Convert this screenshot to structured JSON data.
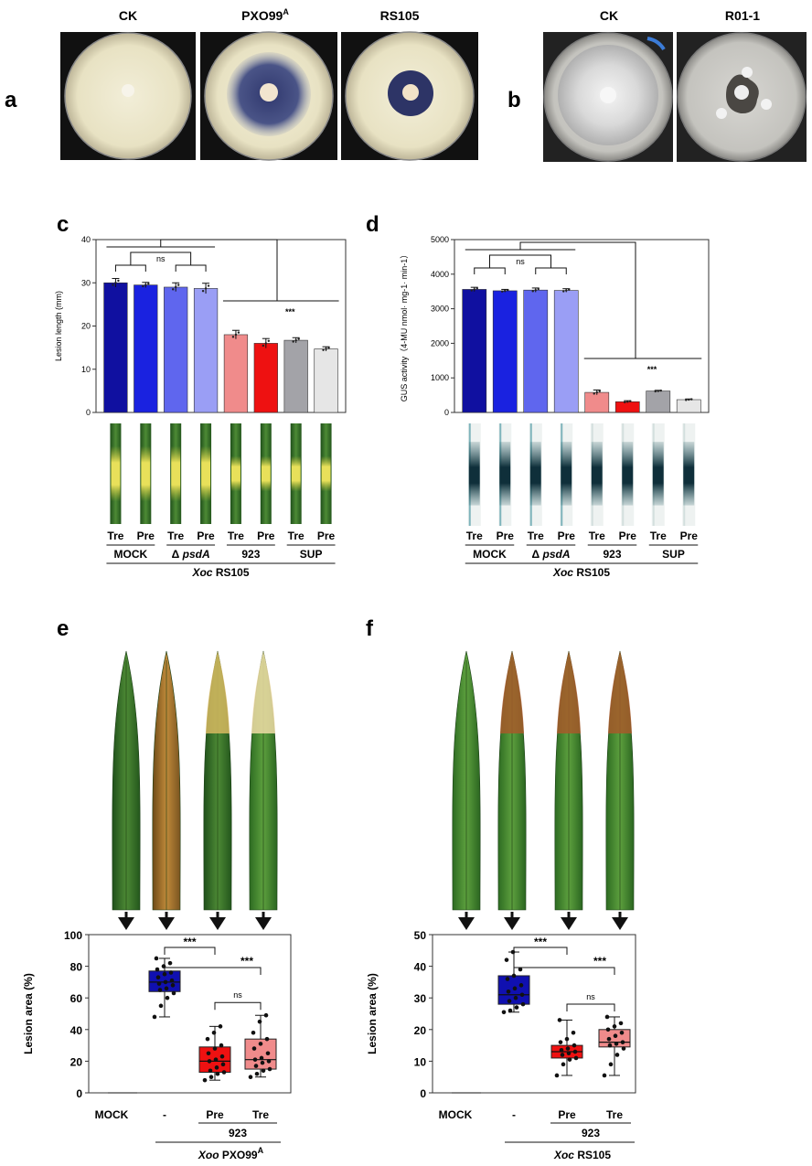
{
  "panel_a": {
    "letter": "a",
    "plates": [
      {
        "label": "CK",
        "halo": "none"
      },
      {
        "label": "PXO99",
        "sup": "A",
        "halo": "large"
      },
      {
        "label": "RS105",
        "halo": "small"
      }
    ]
  },
  "panel_b": {
    "letter": "b",
    "plates": [
      {
        "label": "CK"
      },
      {
        "label": "R01-1"
      }
    ]
  },
  "panel_c": {
    "letter": "c",
    "leaf_style": "yellow lesion",
    "treatments": [
      "Tre",
      "Pre",
      "Tre",
      "Pre",
      "Tre",
      "Pre",
      "Tre",
      "Pre"
    ],
    "groups": [
      "MOCK",
      "Δ",
      "psdA",
      "923",
      "SUP"
    ],
    "strain_prefix": "Xoc",
    "strain": "RS105",
    "sig": [
      "ns",
      "***"
    ]
  },
  "panel_d": {
    "letter": "d",
    "leaf_style": "GUS stain",
    "treatments": [
      "Tre",
      "Pre",
      "Tre",
      "Pre",
      "Tre",
      "Pre",
      "Tre",
      "Pre"
    ],
    "groups": [
      "MOCK",
      "Δ",
      "psdA",
      "923",
      "SUP"
    ],
    "strain_prefix": "Xoc",
    "strain": "RS105",
    "sig": [
      "ns",
      "***"
    ]
  },
  "panel_e": {
    "letter": "e",
    "categories": [
      "MOCK",
      "-",
      "Pre",
      "Tre"
    ],
    "sublabel": "923",
    "strain_prefix": "Xoo",
    "strain": "PXO99",
    "strain_sup": "A",
    "sig": [
      "***",
      "***",
      "ns"
    ]
  },
  "panel_f": {
    "letter": "f",
    "categories": [
      "MOCK",
      "-",
      "Pre",
      "Tre"
    ],
    "sublabel": "923",
    "strain_prefix": "Xoc",
    "strain": "RS105",
    "sig": [
      "***",
      "***",
      "ns"
    ]
  },
  "chart_data": [
    {
      "id": "c",
      "type": "bar",
      "ylabel": "Lesion length (mm)",
      "ylim": [
        0,
        40
      ],
      "yticks": [
        0,
        10,
        20,
        30,
        40
      ],
      "categories": [
        "MOCK Tre",
        "MOCK Pre",
        "ΔpsdA Tre",
        "ΔpsdA Pre",
        "923 Tre",
        "923 Pre",
        "SUP Tre",
        "SUP Pre"
      ],
      "values": [
        30,
        29.5,
        29,
        28.7,
        18,
        16,
        16.7,
        14.7
      ],
      "errors": [
        1.0,
        0.6,
        1.0,
        1.2,
        1.0,
        1.1,
        0.6,
        0.5
      ],
      "colors": [
        "#1010a0",
        "#1a22e0",
        "#5f66ee",
        "#9a9ef5",
        "#f08b8b",
        "#ee1111",
        "#a3a3a8",
        "#e6e6e6"
      ]
    },
    {
      "id": "d",
      "type": "bar",
      "ylabel": "GUS activity（4-MU nmol· mg-1· min-1）",
      "ylim": [
        0,
        5000
      ],
      "yticks": [
        0,
        1000,
        2000,
        3000,
        4000,
        5000
      ],
      "categories": [
        "MOCK Tre",
        "MOCK Pre",
        "ΔpsdA Tre",
        "ΔpsdA Pre",
        "923 Tre",
        "923 Pre",
        "SUP Tre",
        "SUP Pre"
      ],
      "values": [
        3560,
        3520,
        3540,
        3530,
        580,
        310,
        620,
        370
      ],
      "errors": [
        60,
        40,
        60,
        50,
        70,
        30,
        20,
        20
      ],
      "colors": [
        "#1010a0",
        "#1a22e0",
        "#5f66ee",
        "#9a9ef5",
        "#f08b8b",
        "#ee1111",
        "#a3a3a8",
        "#e6e6e6"
      ]
    },
    {
      "id": "e",
      "type": "box",
      "ylabel": "Lesion area (%)",
      "ylim": [
        0,
        100
      ],
      "yticks": [
        0,
        20,
        40,
        60,
        80,
        100
      ],
      "categories": [
        "MOCK",
        "-",
        "Pre",
        "Tre"
      ],
      "boxes": [
        null,
        {
          "min": 48,
          "q1": 64,
          "median": 70,
          "q3": 77,
          "max": 85,
          "color": "#1010b0"
        },
        {
          "min": 8,
          "q1": 13,
          "median": 20,
          "q3": 29,
          "max": 42,
          "color": "#ee1111"
        },
        {
          "min": 10,
          "q1": 15,
          "median": 21,
          "q3": 34,
          "max": 49,
          "color": "#f08b8b"
        }
      ],
      "points": [
        [],
        [
          48,
          55,
          60,
          63,
          65,
          66,
          68,
          69,
          70,
          71,
          73,
          75,
          76,
          78,
          80,
          82,
          85
        ],
        [
          8,
          10,
          12,
          13,
          14,
          16,
          18,
          20,
          21,
          23,
          25,
          28,
          30,
          34,
          38,
          42
        ],
        [
          10,
          12,
          14,
          15,
          17,
          19,
          20,
          21,
          22,
          25,
          28,
          31,
          34,
          38,
          45,
          49
        ]
      ]
    },
    {
      "id": "f",
      "type": "box",
      "ylabel": "Lesion area (%)",
      "ylim": [
        0,
        50
      ],
      "yticks": [
        0,
        10,
        20,
        30,
        40,
        50
      ],
      "categories": [
        "MOCK",
        "-",
        "Pre",
        "Tre"
      ],
      "boxes": [
        null,
        {
          "min": 25.5,
          "q1": 28,
          "median": 31,
          "q3": 37,
          "max": 44.5,
          "color": "#1010b0"
        },
        {
          "min": 5.5,
          "q1": 11,
          "median": 13,
          "q3": 15,
          "max": 23,
          "color": "#ee1111"
        },
        {
          "min": 5.5,
          "q1": 14.5,
          "median": 16,
          "q3": 20,
          "max": 24,
          "color": "#f08b8b"
        }
      ],
      "points": [
        [],
        [
          25.5,
          26,
          27,
          28,
          29,
          30,
          31,
          32,
          33,
          34,
          36,
          37,
          39,
          42,
          44.5
        ],
        [
          5.5,
          9,
          10.5,
          11,
          12,
          12.5,
          13,
          13.5,
          14,
          15,
          16,
          17,
          19,
          23
        ],
        [
          5.5,
          9,
          12,
          14,
          15,
          15.5,
          16,
          17,
          18,
          19,
          20,
          21,
          22,
          24
        ]
      ]
    }
  ]
}
